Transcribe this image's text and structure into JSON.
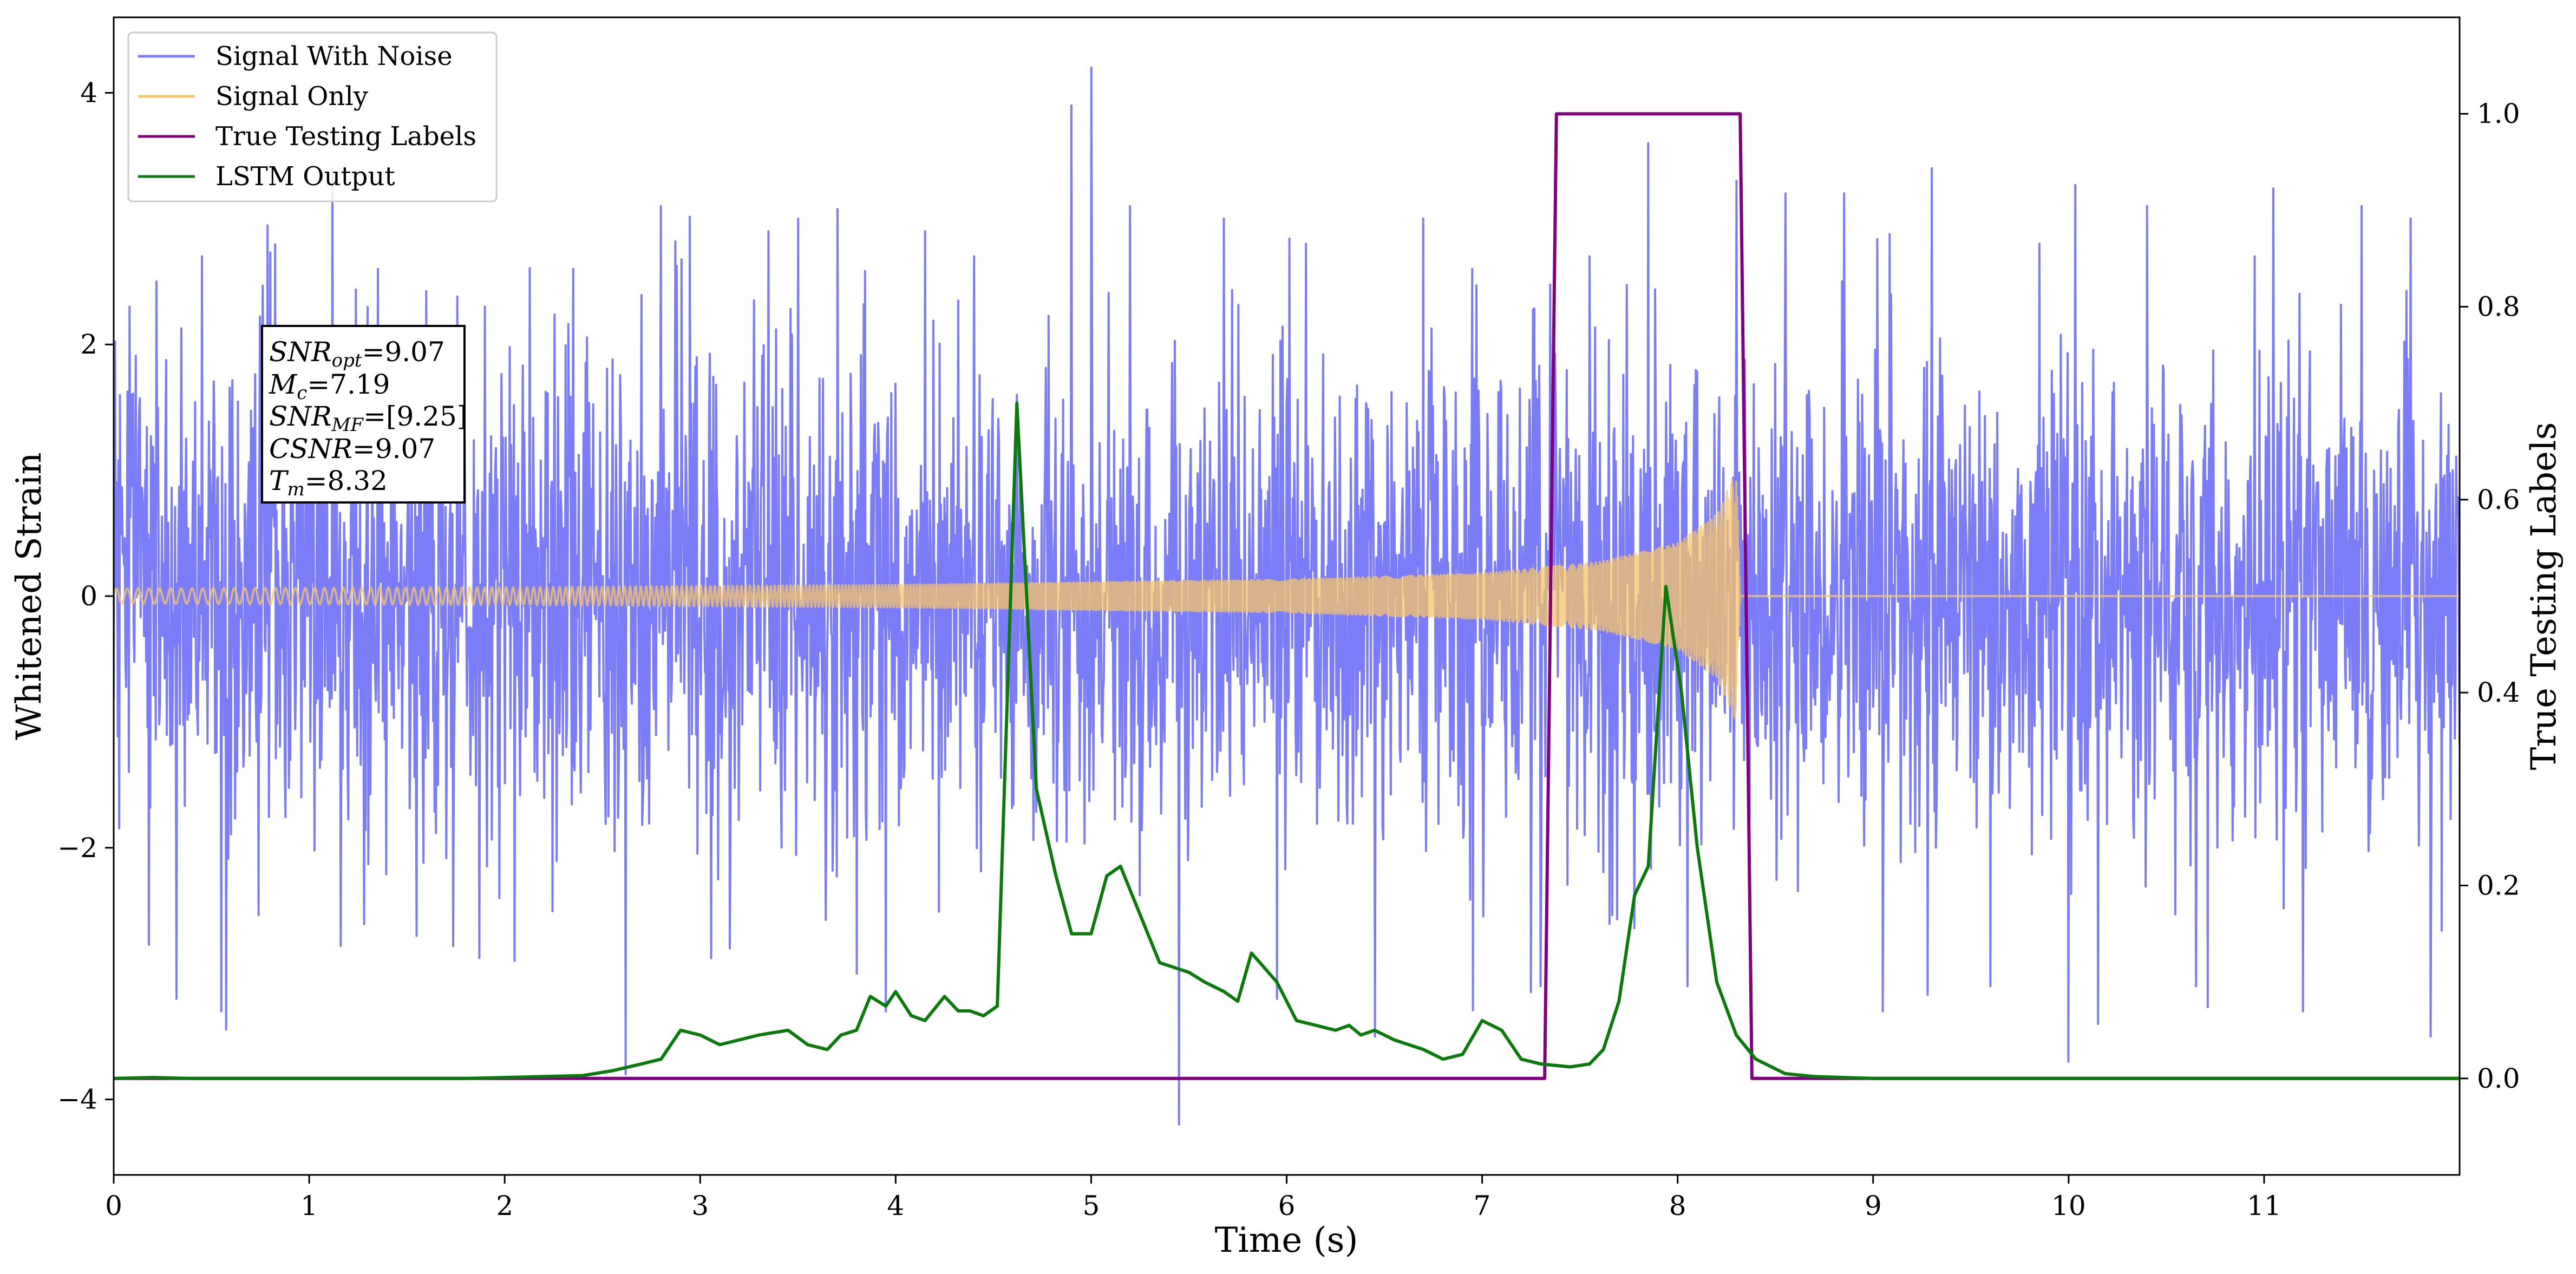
{
  "chart_data": {
    "type": "line",
    "xlabel": "Time (s)",
    "ylabel": "Whitened Strain",
    "y2label": "True Testing Labels",
    "xlim": [
      0,
      12
    ],
    "ylim": [
      -4.6,
      4.6
    ],
    "y2lim": [
      -0.1,
      1.1
    ],
    "x_ticks": [
      0,
      1,
      2,
      3,
      4,
      5,
      6,
      7,
      8,
      9,
      10,
      11
    ],
    "x_tick_labels": [
      "0",
      "1",
      "2",
      "3",
      "4",
      "5",
      "6",
      "7",
      "8",
      "9",
      "10",
      "11"
    ],
    "y_ticks": [
      -4,
      -2,
      0,
      2,
      4
    ],
    "y_tick_labels": [
      "−4",
      "−2",
      "0",
      "2",
      "4"
    ],
    "y2_ticks": [
      0.0,
      0.2,
      0.4,
      0.6,
      0.8,
      1.0
    ],
    "y2_tick_labels": [
      "0.0",
      "0.2",
      "0.4",
      "0.6",
      "0.8",
      "1.0"
    ],
    "grid": false,
    "legend_position": "top-left",
    "series": [
      {
        "name": "Signal With Noise",
        "axis": "left",
        "color": "#7b7cf7",
        "kind": "noise",
        "sigma": 0.95,
        "peaks": [
          [
            0.08,
            2.3
          ],
          [
            0.22,
            2.5
          ],
          [
            0.32,
            -3.2
          ],
          [
            0.45,
            2.7
          ],
          [
            0.55,
            -3.3
          ],
          [
            0.95,
            2.1
          ],
          [
            1.12,
            3.4
          ],
          [
            1.35,
            2.6
          ],
          [
            1.55,
            -2.7
          ],
          [
            1.9,
            2.3
          ],
          [
            2.05,
            -2.9
          ],
          [
            2.35,
            2.6
          ],
          [
            2.62,
            -3.8
          ],
          [
            2.8,
            3.1
          ],
          [
            3.15,
            -2.8
          ],
          [
            3.35,
            2.9
          ],
          [
            3.5,
            3.0
          ],
          [
            3.8,
            -3.0
          ],
          [
            3.95,
            -3.3
          ],
          [
            4.15,
            2.9
          ],
          [
            4.4,
            2.7
          ],
          [
            4.62,
            1.6
          ],
          [
            4.9,
            3.9
          ],
          [
            5.0,
            4.2
          ],
          [
            5.2,
            3.1
          ],
          [
            5.45,
            -4.2
          ],
          [
            5.68,
            3.0
          ],
          [
            5.95,
            -3.2
          ],
          [
            6.1,
            2.8
          ],
          [
            6.45,
            -3.5
          ],
          [
            6.7,
            3.0
          ],
          [
            6.95,
            2.6
          ],
          [
            7.3,
            -3.1
          ],
          [
            7.55,
            2.7
          ],
          [
            7.85,
            3.6
          ],
          [
            8.05,
            -3.1
          ],
          [
            8.3,
            3.3
          ],
          [
            8.55,
            3.2
          ],
          [
            8.85,
            3.2
          ],
          [
            9.05,
            -3.3
          ],
          [
            9.3,
            3.4
          ],
          [
            9.6,
            -3.1
          ],
          [
            9.85,
            2.8
          ],
          [
            10.0,
            -3.7
          ],
          [
            10.15,
            -3.4
          ],
          [
            10.4,
            3.1
          ],
          [
            10.65,
            -3.1
          ],
          [
            10.95,
            2.7
          ],
          [
            11.2,
            -3.3
          ],
          [
            11.5,
            3.1
          ],
          [
            11.75,
            3.0
          ],
          [
            11.85,
            -3.5
          ]
        ]
      },
      {
        "name": "Signal Only",
        "axis": "left",
        "color": "#f5c469",
        "kind": "chirp",
        "merger_time": 8.32,
        "amplitude_envelope": [
          [
            0.0,
            0.06
          ],
          [
            2.0,
            0.07
          ],
          [
            4.0,
            0.09
          ],
          [
            6.0,
            0.13
          ],
          [
            7.0,
            0.18
          ],
          [
            7.6,
            0.27
          ],
          [
            8.0,
            0.42
          ],
          [
            8.2,
            0.65
          ],
          [
            8.3,
            1.0
          ],
          [
            8.32,
            0.0
          ],
          [
            12.0,
            0.0
          ]
        ],
        "frequency_hz_start": 18,
        "frequency_hz_end": 240
      },
      {
        "name": "True Testing Labels",
        "axis": "right",
        "color": "#800080",
        "x": [
          0.0,
          7.32,
          7.38,
          8.32,
          8.38,
          12.0
        ],
        "y": [
          0.0,
          0.0,
          1.0,
          1.0,
          0.0,
          0.0
        ]
      },
      {
        "name": "LSTM Output",
        "axis": "right",
        "color": "#0a7b0a",
        "x": [
          0.0,
          0.2,
          0.4,
          1.0,
          1.8,
          2.0,
          2.2,
          2.4,
          2.55,
          2.7,
          2.8,
          2.9,
          3.0,
          3.1,
          3.2,
          3.3,
          3.45,
          3.55,
          3.65,
          3.72,
          3.8,
          3.87,
          3.95,
          4.0,
          4.08,
          4.15,
          4.25,
          4.32,
          4.38,
          4.45,
          4.52,
          4.62,
          4.72,
          4.82,
          4.9,
          5.0,
          5.08,
          5.15,
          5.25,
          5.35,
          5.5,
          5.58,
          5.68,
          5.75,
          5.82,
          5.95,
          6.05,
          6.15,
          6.25,
          6.32,
          6.38,
          6.45,
          6.55,
          6.7,
          6.8,
          6.9,
          7.0,
          7.1,
          7.2,
          7.3,
          7.45,
          7.55,
          7.62,
          7.7,
          7.78,
          7.85,
          7.94,
          8.02,
          8.1,
          8.2,
          8.3,
          8.4,
          8.55,
          8.7,
          9.0,
          12.0
        ],
        "y": [
          0.0,
          0.001,
          0.0,
          0.0,
          0.0,
          0.001,
          0.002,
          0.003,
          0.008,
          0.015,
          0.02,
          0.05,
          0.045,
          0.035,
          0.04,
          0.045,
          0.05,
          0.035,
          0.03,
          0.045,
          0.05,
          0.085,
          0.075,
          0.09,
          0.065,
          0.06,
          0.085,
          0.07,
          0.07,
          0.065,
          0.075,
          0.7,
          0.3,
          0.21,
          0.15,
          0.15,
          0.21,
          0.22,
          0.17,
          0.12,
          0.11,
          0.1,
          0.09,
          0.08,
          0.13,
          0.1,
          0.06,
          0.055,
          0.05,
          0.055,
          0.045,
          0.05,
          0.04,
          0.03,
          0.02,
          0.025,
          0.06,
          0.05,
          0.02,
          0.015,
          0.012,
          0.015,
          0.03,
          0.08,
          0.19,
          0.22,
          0.51,
          0.4,
          0.24,
          0.1,
          0.045,
          0.02,
          0.005,
          0.002,
          0.0,
          0.0
        ]
      }
    ],
    "annotation": {
      "lines": [
        {
          "name": "SNR",
          "sub": "opt",
          "value": "=9.07"
        },
        {
          "name": "M",
          "sub": "c",
          "value": "=7.19"
        },
        {
          "name": "SNR",
          "sub": "MF",
          "value": "=[9.25]"
        },
        {
          "name": "CSNR",
          "sub": "",
          "value": "=9.07"
        },
        {
          "name": "T",
          "sub": "m",
          "value": "=8.32"
        }
      ]
    }
  }
}
